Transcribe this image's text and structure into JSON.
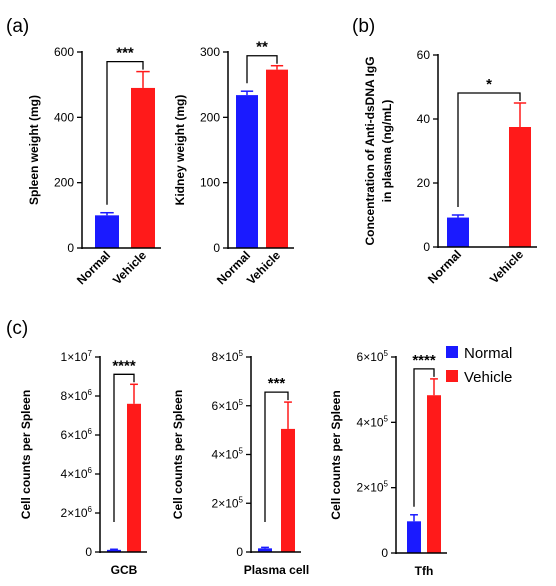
{
  "panel_labels": [
    "(a)",
    "(b)",
    "(c)"
  ],
  "colors": {
    "normal": "#1a1aff",
    "vehicle": "#ff1a1a"
  },
  "legend": {
    "items": [
      {
        "label": "Normal",
        "color": "#1a1aff"
      },
      {
        "label": "Vehicle",
        "color": "#ff1a1a"
      }
    ]
  },
  "chart_data": [
    {
      "type": "bar",
      "title": "",
      "ylabel": "Spleen weight (mg)",
      "categories": [
        "Normal",
        "Vehicle"
      ],
      "values": [
        100,
        490
      ],
      "errors": [
        8,
        50
      ],
      "ylim": [
        0,
        600
      ],
      "yticks": [
        0,
        200,
        400,
        600
      ],
      "ytick_labels": [
        "0",
        "200",
        "400",
        "600"
      ],
      "significance": "***"
    },
    {
      "type": "bar",
      "title": "",
      "ylabel": "Kidney weight (mg)",
      "categories": [
        "Normal",
        "Vehicle"
      ],
      "values": [
        234,
        273
      ],
      "errors": [
        6,
        6
      ],
      "ylim": [
        0,
        300
      ],
      "yticks": [
        0,
        100,
        200,
        300
      ],
      "ytick_labels": [
        "0",
        "100",
        "200",
        "300"
      ],
      "significance": "**"
    },
    {
      "type": "bar",
      "title": "",
      "ylabel": "Concentration of Anti-dsDNA IgG in plasma (ng/mL)",
      "ylabel_lines": [
        "Concentration of Anti-dsDNA IgG",
        "in plasma (ng/mL)"
      ],
      "categories": [
        "Normal",
        "Vehicle"
      ],
      "values": [
        9.2,
        37.5
      ],
      "errors": [
        0.8,
        7.5
      ],
      "ylim": [
        0,
        60
      ],
      "yticks": [
        0,
        20,
        40,
        60
      ],
      "ytick_labels": [
        "0",
        "20",
        "40",
        "60"
      ],
      "significance": "*"
    },
    {
      "type": "bar",
      "title": "",
      "xlabel": "GCB",
      "ylabel": "Cell counts per Spleen",
      "series": [
        {
          "name": "Normal",
          "value": 110000,
          "error": 30000
        },
        {
          "name": "Vehicle",
          "value": 7600000,
          "error": 1000000
        }
      ],
      "ylim": [
        0,
        10000000
      ],
      "yticks": [
        0,
        2000000,
        4000000,
        6000000,
        8000000,
        10000000
      ],
      "ytick_labels": [
        {
          "base": "0",
          "exp": ""
        },
        {
          "base": "2×10",
          "exp": "6"
        },
        {
          "base": "4×10",
          "exp": "6"
        },
        {
          "base": "6×10",
          "exp": "6"
        },
        {
          "base": "8×10",
          "exp": "6"
        },
        {
          "base": "1×10",
          "exp": "7"
        }
      ],
      "significance": "****"
    },
    {
      "type": "bar",
      "title": "",
      "xlabel": "Plasma cell",
      "ylabel": "Cell counts per Spleen",
      "series": [
        {
          "name": "Normal",
          "value": 15000,
          "error": 4000
        },
        {
          "name": "Vehicle",
          "value": 505000,
          "error": 110000
        }
      ],
      "ylim": [
        0,
        800000
      ],
      "yticks": [
        0,
        200000,
        400000,
        600000,
        800000
      ],
      "ytick_labels": [
        {
          "base": "0",
          "exp": ""
        },
        {
          "base": "2×10",
          "exp": "5"
        },
        {
          "base": "4×10",
          "exp": "5"
        },
        {
          "base": "6×10",
          "exp": "5"
        },
        {
          "base": "8×10",
          "exp": "5"
        }
      ],
      "significance": "***"
    },
    {
      "type": "bar",
      "title": "",
      "xlabel": "Tfh",
      "ylabel": "Cell counts per Spleen",
      "series": [
        {
          "name": "Normal",
          "value": 97000,
          "error": 20000
        },
        {
          "name": "Vehicle",
          "value": 483000,
          "error": 50000
        }
      ],
      "ylim": [
        0,
        600000
      ],
      "yticks": [
        0,
        200000,
        400000,
        600000
      ],
      "ytick_labels": [
        {
          "base": "0",
          "exp": ""
        },
        {
          "base": "2×10",
          "exp": "5"
        },
        {
          "base": "4×10",
          "exp": "5"
        },
        {
          "base": "6×10",
          "exp": "5"
        }
      ],
      "significance": "****"
    }
  ]
}
